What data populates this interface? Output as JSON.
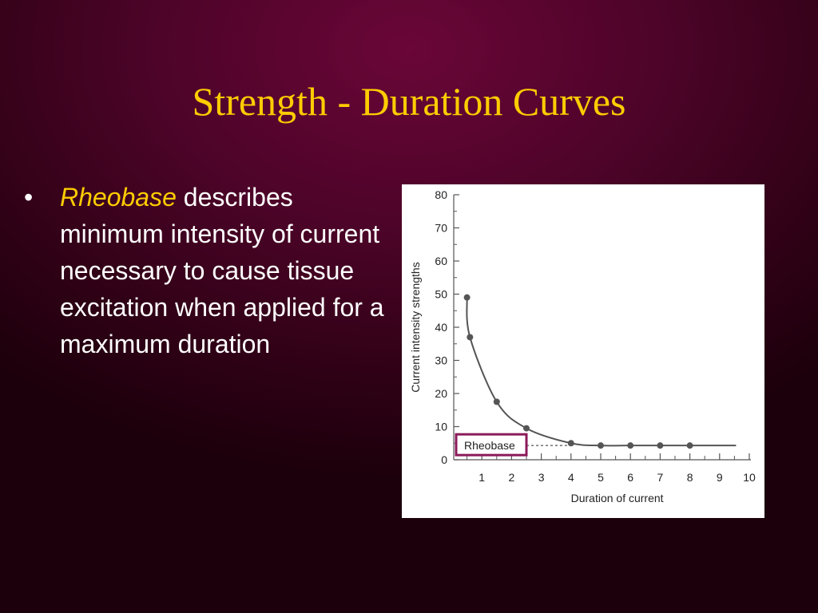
{
  "slide": {
    "title": "Strength - Duration Curves",
    "bullet": {
      "marker": "•",
      "term": "Rheobase",
      "text": " describes minimum intensity of current necessary to cause tissue excitation when applied for a maximum duration"
    }
  },
  "colors": {
    "background": "#4e0429",
    "title": "#ffcc00",
    "term": "#ffcc00",
    "body_text": "#ffffff",
    "curve": "#555555",
    "rheobase_box": "#8b1a5a"
  },
  "chart_data": {
    "type": "line",
    "title": "",
    "xlabel": "Duration of current",
    "ylabel": "Current intensity strengths",
    "xlim": [
      0,
      10
    ],
    "ylim": [
      0,
      80
    ],
    "x_ticks": [
      "1",
      "2",
      "3",
      "4",
      "5",
      "6",
      "7",
      "8",
      "9",
      "10"
    ],
    "y_ticks": [
      "0",
      "10",
      "20",
      "30",
      "40",
      "50",
      "60",
      "70",
      "80"
    ],
    "series": [
      {
        "x": [
          0.5,
          0.6,
          1.5,
          2.5,
          4.0,
          5.0,
          6.0,
          7.0,
          8.0
        ],
        "y": [
          49,
          37,
          17.5,
          9.5,
          5,
          4.3,
          4.3,
          4.3,
          4.3
        ]
      }
    ],
    "annotation": {
      "label": "Rheobase",
      "y": 4.3
    },
    "grid": false,
    "legend": "none"
  }
}
